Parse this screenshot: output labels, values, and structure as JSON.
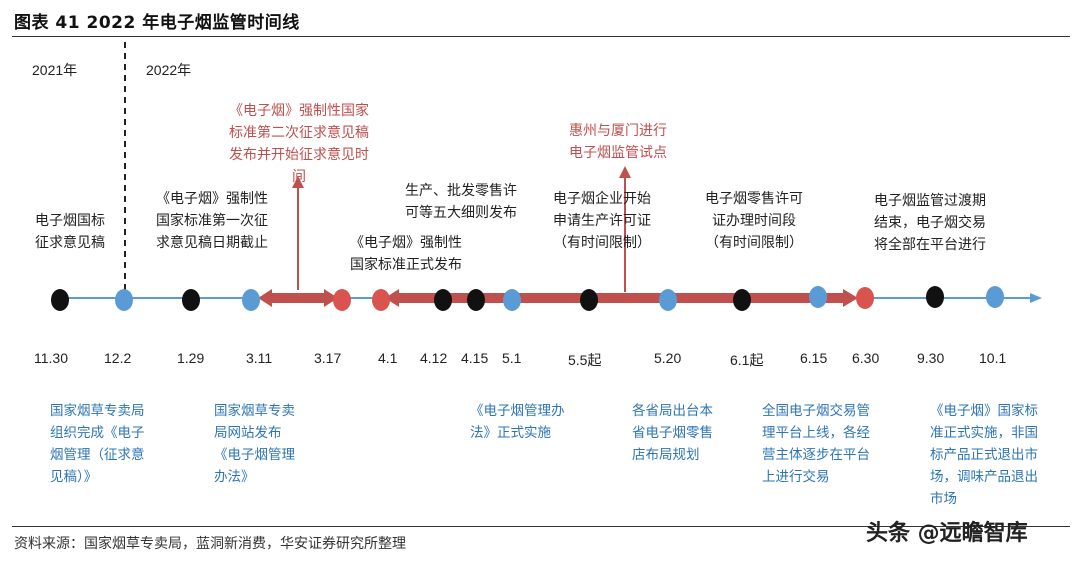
{
  "title": "图表 41 2022 年电子烟监管时间线",
  "years": {
    "left": "2021年",
    "right": "2022年"
  },
  "source": "资料来源：国家烟草专卖局，蓝洞新消费，华安证券研究所整理",
  "watermark": "头条 @远瞻智库",
  "colors": {
    "axis": "#5b9bd5",
    "black_dot": "#111111",
    "blue_dot": "#5b9bd5",
    "red_dot": "#d9534f",
    "red_arrow": "#c0504d",
    "blue_text": "#2e75b6",
    "red_text": "#c0504d"
  },
  "timeline": [
    {
      "id": "d1130",
      "date": "11.30",
      "dot": "black"
    },
    {
      "id": "d122",
      "date": "12.2",
      "dot": "blue"
    },
    {
      "id": "d129",
      "date": "1.29",
      "dot": "black"
    },
    {
      "id": "d311",
      "date": "3.11",
      "dot": "blue"
    },
    {
      "id": "d317",
      "date": "3.17",
      "dot": "red"
    },
    {
      "id": "d41",
      "date": "4.1",
      "dot": "red"
    },
    {
      "id": "d412",
      "date": "4.12",
      "dot": "black"
    },
    {
      "id": "d415",
      "date": "4.15",
      "dot": "black"
    },
    {
      "id": "d51",
      "date": "5.1",
      "dot": "blue"
    },
    {
      "id": "d55",
      "date": "5.5起",
      "dot": "black"
    },
    {
      "id": "d520",
      "date": "5.20",
      "dot": "blue"
    },
    {
      "id": "d61",
      "date": "6.1起",
      "dot": "black"
    },
    {
      "id": "d615",
      "date": "6.15",
      "dot": "blue"
    },
    {
      "id": "d630",
      "date": "6.30",
      "dot": "red"
    },
    {
      "id": "d930",
      "date": "9.30",
      "dot": "black"
    },
    {
      "id": "d101",
      "date": "10.1",
      "dot": "blue"
    }
  ],
  "events_top": {
    "e1130": "电子烟国标\n征求意见稿",
    "e129": "《电子烟》强制性\n国家标准第一次征\n求意见稿日期截止",
    "e311": "《电子烟》强制性国家\n标准第二次征求意见稿\n发布并开始征求意见时\n间",
    "e41": "《电子烟》强制性\n国家标准正式发布",
    "e412": "生产、批发零售许\n可等五大细则发布",
    "e55": "电子烟企业开始\n申请生产许可证\n（有时间限制）",
    "e520": "惠州与厦门进行\n电子烟监管试点",
    "e61": "电子烟零售许可\n证办理时间段\n（有时间限制）",
    "e630": "电子烟监管过渡期\n结束，电子烟交易\n将全部在平台进行"
  },
  "events_bottom": {
    "b122": "国家烟草专卖局\n组织完成《电子\n烟管理（征求意\n见稿）》",
    "b311": "国家烟草专卖\n局网站发布\n《电子烟管理\n办法》",
    "b51": "《电子烟管理办\n法》正式实施",
    "b520": "各省局出台本\n省电子烟零售\n店布局规划",
    "b615": "全国电子烟交易管\n理平台上线，各经\n营主体逐步在平台\n上进行交易",
    "b101": "《电子烟》国家标\n准正式实施，非国\n标产品正式退出市\n场，调味产品退出\n市场"
  }
}
